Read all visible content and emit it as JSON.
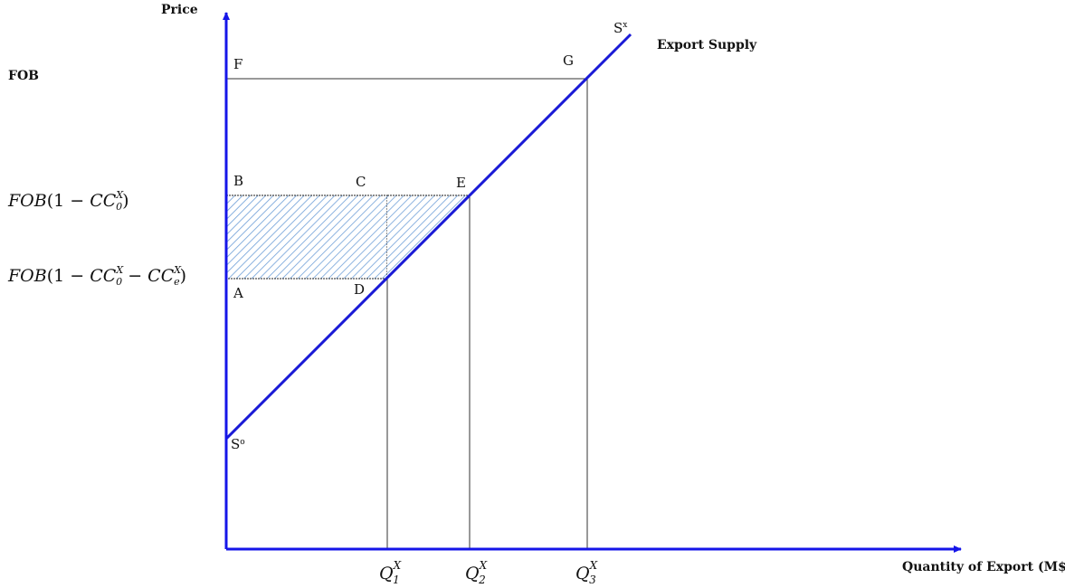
{
  "axes": {
    "y_label": "Price",
    "x_label": "Quantity of Export (M$)"
  },
  "curve": {
    "name": "Export Supply",
    "top_label": "S",
    "top_label_sup": "x",
    "bottom_label": "S",
    "bottom_label_sup": "o"
  },
  "price_levels": {
    "fob": "FOB",
    "p1": {
      "prefix": "FOB",
      "open": "(1 − ",
      "cc": "CC",
      "sub": "0",
      "sup": "X",
      "close": ")"
    },
    "p2": {
      "prefix": "FOB",
      "open": "(1 − ",
      "cc1": "CC",
      "sub1": "0",
      "sup1": "X",
      "minus": " − ",
      "cc2": "CC",
      "sub2": "e",
      "sup2": "X",
      "close": ")"
    }
  },
  "points": {
    "A": "A",
    "B": "B",
    "C": "C",
    "D": "D",
    "E": "E",
    "F": "F",
    "G": "G"
  },
  "quantities": [
    {
      "q": "Q",
      "sub": "1",
      "sup": "X"
    },
    {
      "q": "Q",
      "sub": "2",
      "sup": "X"
    },
    {
      "q": "Q",
      "sub": "3",
      "sup": "X"
    }
  ],
  "colors": {
    "axis": "#1515e8",
    "curve": "#1a1ad6",
    "hatch": "#6f9fd8"
  }
}
